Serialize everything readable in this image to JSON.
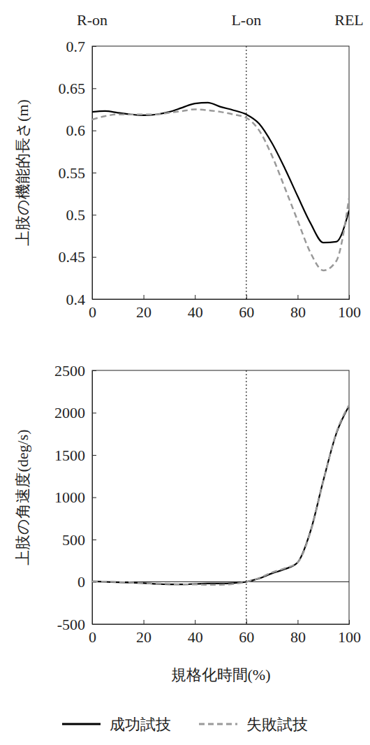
{
  "chart_data": [
    {
      "type": "line",
      "events": [
        {
          "x": 0,
          "label": "R-on"
        },
        {
          "x": 60,
          "label": "L-on"
        },
        {
          "x": 100,
          "label": "REL"
        }
      ],
      "vlines": [
        60
      ],
      "y_label": "上肢の機能的長さ(m)",
      "xlim": [
        0,
        100
      ],
      "xticks": [
        0,
        20,
        40,
        60,
        80,
        100
      ],
      "ylim": [
        0.4,
        0.7
      ],
      "yticks": [
        0.4,
        0.45,
        0.5,
        0.55,
        0.6,
        0.65,
        0.7
      ],
      "x": [
        0,
        5,
        10,
        15,
        20,
        25,
        30,
        35,
        40,
        45,
        50,
        55,
        60,
        65,
        70,
        75,
        80,
        85,
        90,
        95,
        100
      ],
      "series": [
        {
          "color": "#000000",
          "line_style": "solid",
          "values": [
            0.622,
            0.623,
            0.621,
            0.619,
            0.618,
            0.619,
            0.622,
            0.627,
            0.632,
            0.633,
            0.628,
            0.624,
            0.619,
            0.608,
            0.585,
            0.555,
            0.522,
            0.49,
            0.467,
            0.468,
            0.505
          ]
        },
        {
          "color": "#999999",
          "line_style": "dashed",
          "values": [
            0.613,
            0.617,
            0.619,
            0.619,
            0.619,
            0.619,
            0.621,
            0.623,
            0.625,
            0.624,
            0.622,
            0.619,
            0.615,
            0.6,
            0.57,
            0.532,
            0.493,
            0.455,
            0.434,
            0.445,
            0.52
          ]
        }
      ]
    },
    {
      "type": "line",
      "vlines": [
        60
      ],
      "hlines": [
        0
      ],
      "x_label": "規格化時間(%)",
      "y_label": "上肢の角速度(deg/s)",
      "legend": "bottom",
      "xlim": [
        0,
        100
      ],
      "xticks": [
        0,
        20,
        40,
        60,
        80,
        100
      ],
      "ylim": [
        -500,
        2500
      ],
      "yticks": [
        -500,
        0,
        500,
        1000,
        1500,
        2000,
        2500
      ],
      "x": [
        0,
        5,
        10,
        15,
        20,
        25,
        30,
        35,
        40,
        45,
        50,
        55,
        60,
        65,
        70,
        75,
        80,
        85,
        90,
        95,
        100
      ],
      "series": [
        {
          "name": "成功試技",
          "color": "#000000",
          "line_style": "solid",
          "values": [
            5,
            0,
            -5,
            -10,
            -15,
            -25,
            -30,
            -30,
            -25,
            -20,
            -20,
            -15,
            0,
            40,
            100,
            150,
            230,
            600,
            1200,
            1750,
            2080
          ]
        },
        {
          "name": "失敗試技",
          "color": "#999999",
          "line_style": "dashed",
          "values": [
            5,
            2,
            -3,
            -8,
            -15,
            -20,
            -25,
            -30,
            -30,
            -35,
            -35,
            -25,
            0,
            45,
            110,
            160,
            230,
            590,
            1190,
            1760,
            2090
          ]
        }
      ]
    }
  ]
}
